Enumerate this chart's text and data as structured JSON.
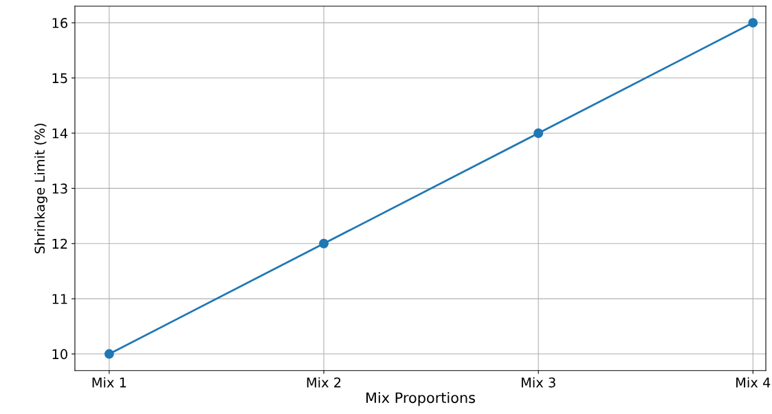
{
  "chart_data": {
    "type": "line",
    "xlabel": "Mix Proportions",
    "ylabel": "Shrinkage Limit (%)",
    "categories": [
      "Mix 1",
      "Mix 2",
      "Mix 3",
      "Mix 4"
    ],
    "series": [
      {
        "color": "#1f77b4",
        "values": [
          10,
          12,
          14,
          16
        ]
      }
    ],
    "ylim": [
      9.7,
      16.3
    ],
    "yticks": [
      10,
      11,
      12,
      13,
      14,
      15,
      16
    ],
    "grid": true,
    "marker": "circle",
    "line_style": "solid"
  }
}
